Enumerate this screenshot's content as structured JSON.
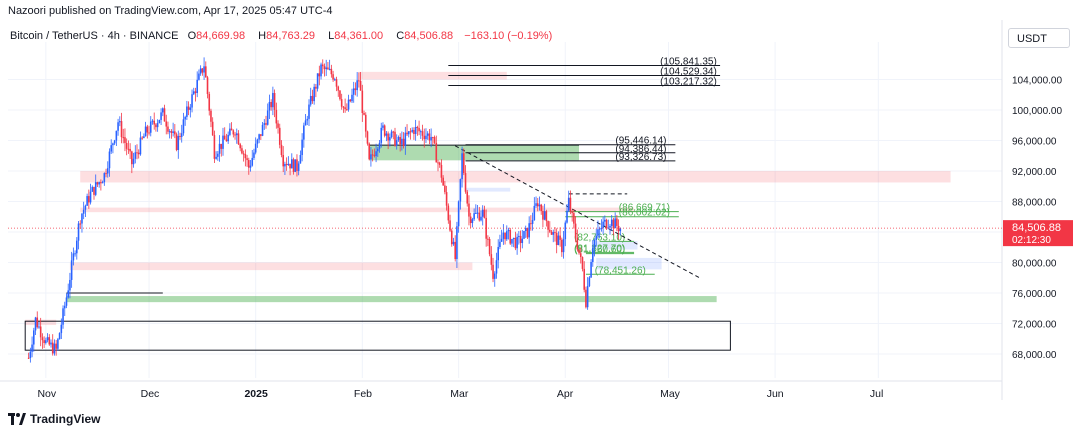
{
  "attribution": "Nazoori published on TradingView.com, Apr 17, 2025 05:47 UTC-4",
  "legend": {
    "symbol": "Bitcoin / TetherUS · 4h · BINANCE",
    "open_label": "O",
    "open": "84,669.98",
    "high_label": "H",
    "high": "84,763.29",
    "low_label": "L",
    "low": "84,361.00",
    "close_label": "C",
    "close": "84,506.88",
    "change": "−163.10 (−0.19%)"
  },
  "currency_button": "USDT",
  "footer_logo": "TradingView",
  "colors": {
    "up": "#2962ff",
    "down": "#f23645",
    "accent_green": "#4caf50",
    "price_red": "#f23645"
  },
  "chart_data": {
    "type": "candlestick",
    "symbol": "Bitcoin / TetherUS",
    "timeframe": "4h",
    "exchange": "BINANCE",
    "quote": "USDT",
    "y_range": [
      66000,
      108000
    ],
    "y_ticks": [
      "68,000.00",
      "72,000.00",
      "76,000.00",
      "80,000.00",
      "84,000.00",
      "88,000.00",
      "92,000.00",
      "96,000.00",
      "100,000.00",
      "104,000.00"
    ],
    "x_ticks": [
      "Nov",
      "Dec",
      "2025",
      "Feb",
      "Mar",
      "Apr",
      "May",
      "Jun",
      "Jul"
    ],
    "current_price": {
      "value": 84506.88,
      "label": "84,506.88",
      "countdown": "02:12:30"
    },
    "price_path": [
      {
        "date": "2024-10-27",
        "price": 67500
      },
      {
        "date": "2024-10-29",
        "price": 72500
      },
      {
        "date": "2024-11-01",
        "price": 69500
      },
      {
        "date": "2024-11-04",
        "price": 68500
      },
      {
        "date": "2024-11-07",
        "price": 75500
      },
      {
        "date": "2024-11-11",
        "price": 86000
      },
      {
        "date": "2024-11-14",
        "price": 89000
      },
      {
        "date": "2024-11-18",
        "price": 91500
      },
      {
        "date": "2024-11-22",
        "price": 98500
      },
      {
        "date": "2024-11-26",
        "price": 93000
      },
      {
        "date": "2024-11-30",
        "price": 97000
      },
      {
        "date": "2024-12-05",
        "price": 99500
      },
      {
        "date": "2024-12-09",
        "price": 95500
      },
      {
        "date": "2024-12-13",
        "price": 101000
      },
      {
        "date": "2024-12-17",
        "price": 106000
      },
      {
        "date": "2024-12-20",
        "price": 94500
      },
      {
        "date": "2024-12-26",
        "price": 97500
      },
      {
        "date": "2024-12-30",
        "price": 92500
      },
      {
        "date": "2025-01-06",
        "price": 101500
      },
      {
        "date": "2025-01-09",
        "price": 93500
      },
      {
        "date": "2025-01-13",
        "price": 92500
      },
      {
        "date": "2025-01-16",
        "price": 99500
      },
      {
        "date": "2025-01-20",
        "price": 105500
      },
      {
        "date": "2025-01-24",
        "price": 104500
      },
      {
        "date": "2025-01-27",
        "price": 99500
      },
      {
        "date": "2025-01-31",
        "price": 104000
      },
      {
        "date": "2025-02-03",
        "price": 93000
      },
      {
        "date": "2025-02-07",
        "price": 97500
      },
      {
        "date": "2025-02-12",
        "price": 95500
      },
      {
        "date": "2025-02-16",
        "price": 97500
      },
      {
        "date": "2025-02-21",
        "price": 96500
      },
      {
        "date": "2025-02-24",
        "price": 91500
      },
      {
        "date": "2025-02-26",
        "price": 86000
      },
      {
        "date": "2025-02-28",
        "price": 80500
      },
      {
        "date": "2025-03-02",
        "price": 94000
      },
      {
        "date": "2025-03-04",
        "price": 86000
      },
      {
        "date": "2025-03-08",
        "price": 86500
      },
      {
        "date": "2025-03-11",
        "price": 78500
      },
      {
        "date": "2025-03-14",
        "price": 84000
      },
      {
        "date": "2025-03-18",
        "price": 82500
      },
      {
        "date": "2025-03-21",
        "price": 84000
      },
      {
        "date": "2025-03-24",
        "price": 88000
      },
      {
        "date": "2025-03-28",
        "price": 84000
      },
      {
        "date": "2025-03-31",
        "price": 82000
      },
      {
        "date": "2025-04-02",
        "price": 88000
      },
      {
        "date": "2025-04-06",
        "price": 79000
      },
      {
        "date": "2025-04-07",
        "price": 75000
      },
      {
        "date": "2025-04-09",
        "price": 82500
      },
      {
        "date": "2025-04-12",
        "price": 85000
      },
      {
        "date": "2025-04-14",
        "price": 85500
      },
      {
        "date": "2025-04-17",
        "price": 84500
      }
    ],
    "level_labels": [
      {
        "label": "(105,841.35)",
        "price": 105841.35,
        "start": "2025-02-26",
        "end": "2025-05-16",
        "color": "#131722"
      },
      {
        "label": "(104,529.34)",
        "price": 104529.34,
        "start": "2025-02-26",
        "end": "2025-05-16",
        "color": "#131722"
      },
      {
        "label": "(103,217.32)",
        "price": 103217.32,
        "start": "2025-02-26",
        "end": "2025-05-16",
        "color": "#131722"
      },
      {
        "label": "(95,446.14)",
        "price": 95446.14,
        "start": "2025-03-03",
        "end": "2025-05-03",
        "color": "#131722"
      },
      {
        "label": "(94,386.44)",
        "price": 94386.44,
        "start": "2025-03-03",
        "end": "2025-05-03",
        "color": "#131722"
      },
      {
        "label": "(93,326.73)",
        "price": 93326.73,
        "start": "2025-03-03",
        "end": "2025-05-03",
        "color": "#131722"
      },
      {
        "label": "(86,669.71)",
        "price": 86669.71,
        "start": "2025-04-01",
        "end": "2025-05-04",
        "color": "#4caf50"
      },
      {
        "label": "(86,002.02)",
        "price": 86002.02,
        "start": "2025-04-01",
        "end": "2025-05-04",
        "color": "#4caf50"
      },
      {
        "label": "(82,763.10)",
        "price": 82763.1,
        "start": "2025-04-11",
        "end": "2025-04-21",
        "color": "#4caf50"
      },
      {
        "label": "(81,327.70)",
        "price": 81327.7,
        "start": "2025-04-07",
        "end": "2025-04-21",
        "color": "#4caf50"
      },
      {
        "label": "(81,160.60)",
        "price": 81160.6,
        "start": "2025-04-07",
        "end": "2025-04-21",
        "color": "#4caf50"
      },
      {
        "label": "(78,451.26)",
        "price": 78451.26,
        "start": "2025-04-07",
        "end": "2025-04-27",
        "color": "#4caf50"
      }
    ],
    "zones": [
      {
        "kind": "pink",
        "start": "2025-01-31",
        "end": "2025-03-15",
        "y1": 105000,
        "y2": 104000
      },
      {
        "kind": "pink",
        "start": "2024-11-11",
        "end": "2025-07-22",
        "y1": 92000,
        "y2": 90500
      },
      {
        "kind": "pink",
        "start": "2024-11-11",
        "end": "2025-04-21",
        "y1": 87200,
        "y2": 86600
      },
      {
        "kind": "pink",
        "start": "2024-11-08",
        "end": "2025-03-05",
        "y1": 80000,
        "y2": 79000
      },
      {
        "kind": "pink",
        "start": "2024-10-26",
        "end": "2024-11-04",
        "y1": 72500,
        "y2": 71800
      },
      {
        "kind": "green",
        "start": "2025-02-03",
        "end": "2025-04-05",
        "y1": 95400,
        "y2": 93400
      },
      {
        "kind": "green",
        "start": "2024-11-07",
        "end": "2025-05-15",
        "y1": 75600,
        "y2": 74800
      },
      {
        "kind": "blue",
        "start": "2025-03-03",
        "end": "2025-03-16",
        "y1": 89800,
        "y2": 89300
      },
      {
        "kind": "blue",
        "start": "2025-04-10",
        "end": "2025-04-29",
        "y1": 80600,
        "y2": 79100
      },
      {
        "kind": "blue",
        "start": "2025-04-10",
        "end": "2025-04-22",
        "y1": 82800,
        "y2": 81700
      }
    ],
    "boxes": [
      {
        "start": "2024-10-26",
        "end": "2025-05-19",
        "y1": 72300,
        "y2": 68500,
        "color": "#131722"
      }
    ],
    "plain_lines": [
      {
        "start": "2024-11-07",
        "end": "2024-12-05",
        "price": 76000,
        "color": "#131722"
      },
      {
        "start": "2025-02-03",
        "end": "2025-04-05",
        "price": 95400,
        "color": "#131722"
      }
    ],
    "dashed_lines": [
      {
        "start": "2025-04-02",
        "end": "2025-04-19",
        "price": 89000,
        "color": "#131722"
      }
    ],
    "trendline": {
      "start_date": "2025-02-28",
      "start_price": 95300,
      "end_date": "2025-05-10",
      "end_price": 78000,
      "style": "dashed"
    },
    "grid": true
  }
}
